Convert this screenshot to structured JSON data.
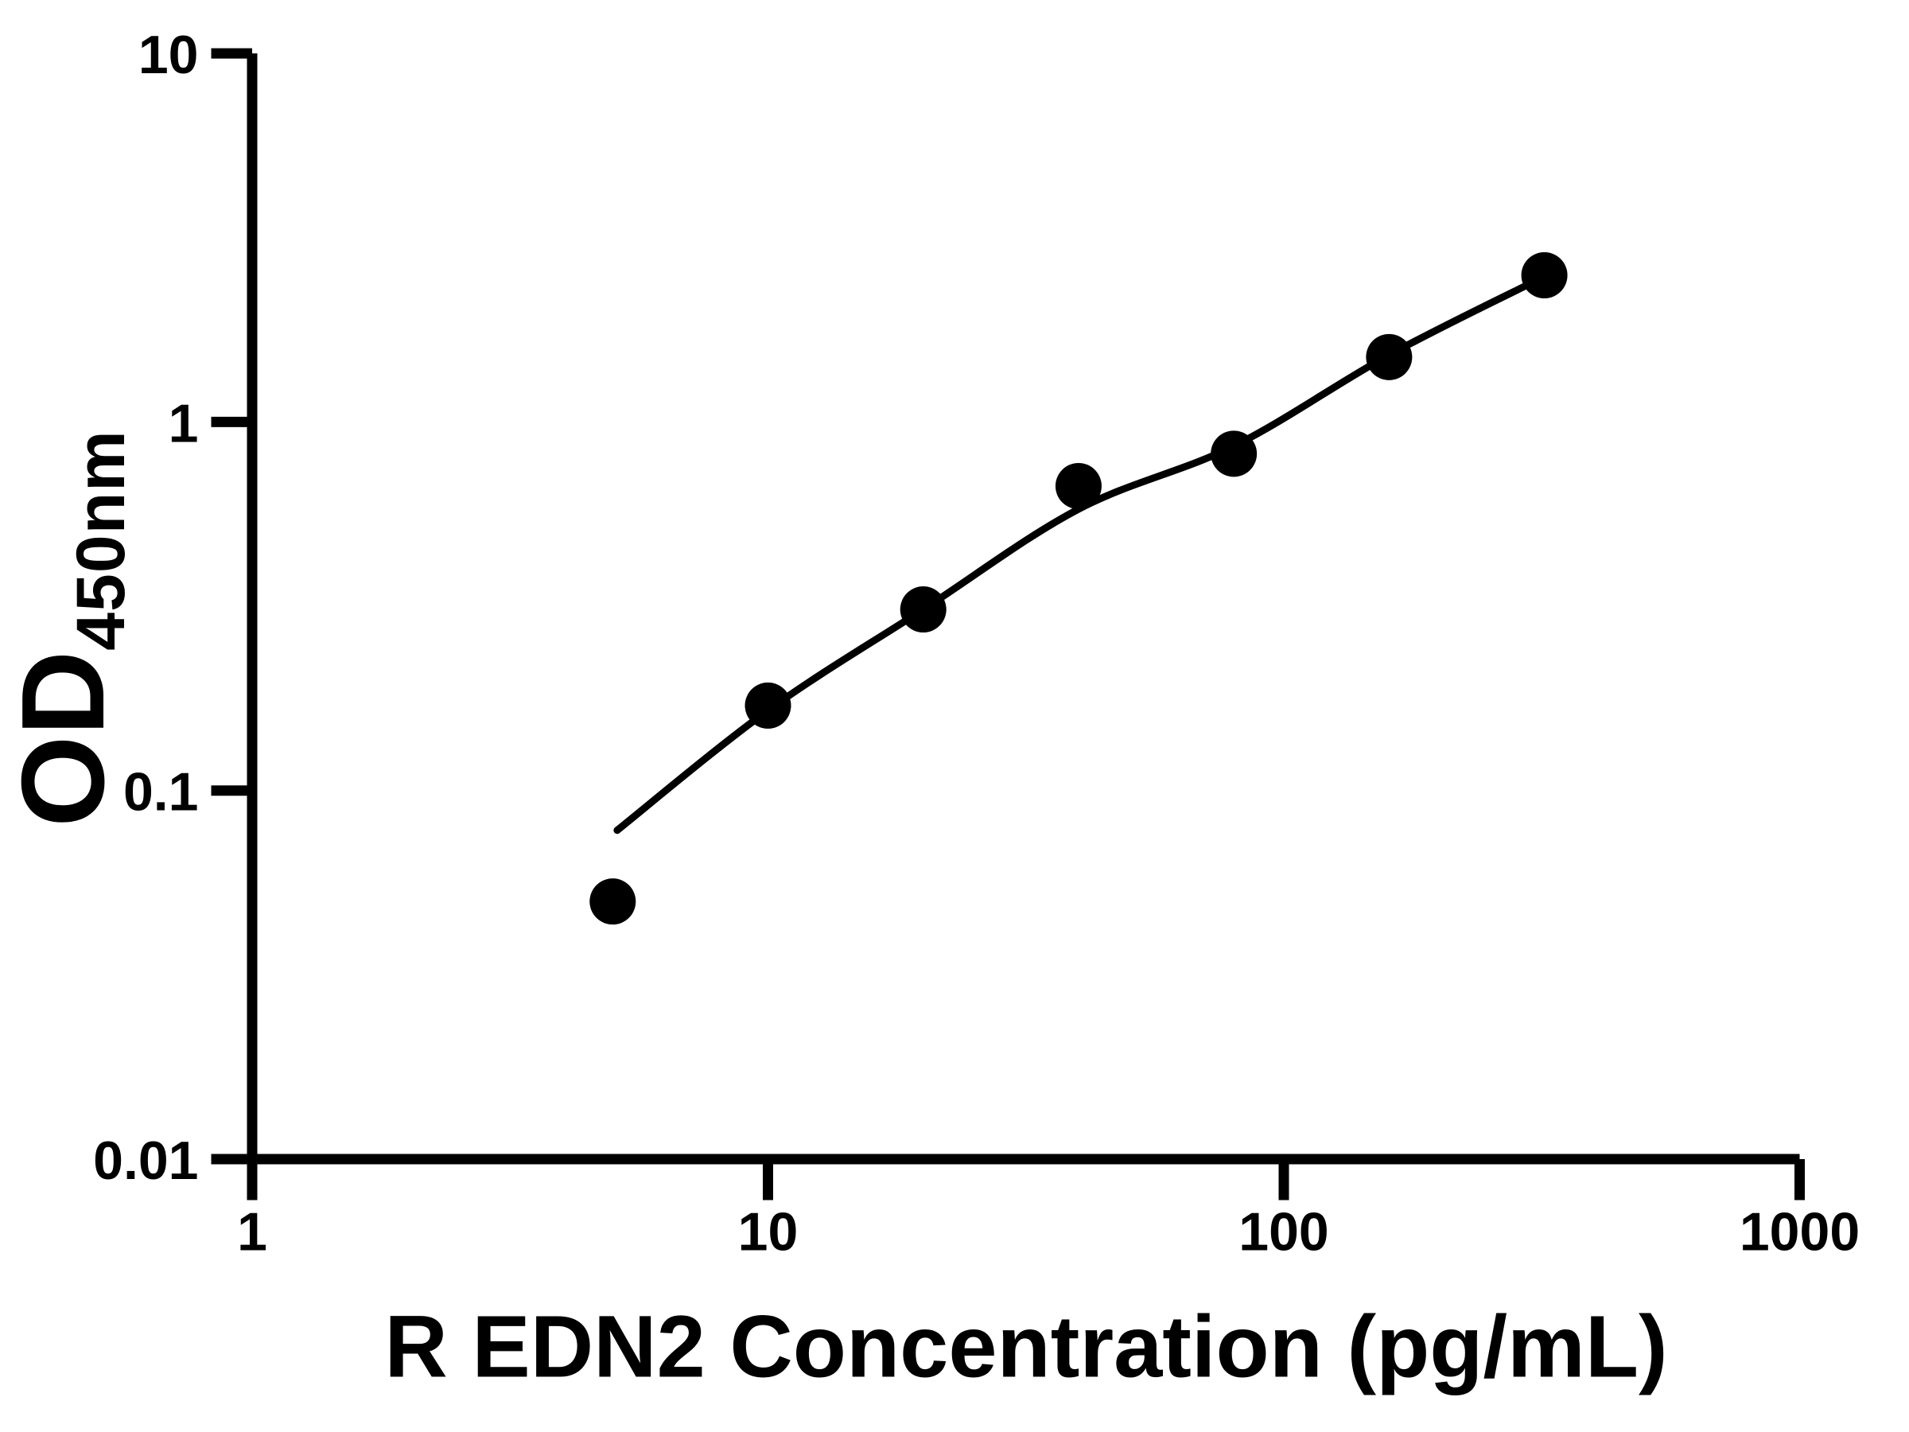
{
  "chart_data": {
    "type": "scatter",
    "title": "",
    "xlabel": "R EDN2 Concentration (pg/mL)",
    "ylabel_main": "OD",
    "ylabel_sub": "450nm",
    "x_scale": "log",
    "y_scale": "log",
    "xlim": [
      1,
      1000
    ],
    "ylim": [
      0.01,
      10
    ],
    "grid": false,
    "legend_position": "none",
    "axis_color": "#000000",
    "marker_color": "#000000",
    "curve_color": "#000000",
    "background_color": "#ffffff",
    "x_ticks": {
      "values": [
        1,
        10,
        100,
        1000
      ],
      "labels": [
        "1",
        "10",
        "100",
        "1000"
      ]
    },
    "y_ticks": {
      "values": [
        10,
        1,
        0.1,
        0.01
      ],
      "labels": [
        "10",
        "1",
        "0.1",
        "0.01"
      ]
    },
    "series": [
      {
        "name": "standard-curve-points",
        "marker": "filled-circle",
        "points": [
          {
            "x": 5,
            "y": 0.05
          },
          {
            "x": 10,
            "y": 0.17
          },
          {
            "x": 20,
            "y": 0.31
          },
          {
            "x": 40,
            "y": 0.67
          },
          {
            "x": 80,
            "y": 0.82
          },
          {
            "x": 160,
            "y": 1.5
          },
          {
            "x": 320,
            "y": 2.5
          }
        ]
      }
    ],
    "fit_curve": {
      "name": "standard-curve-fit",
      "samples": [
        {
          "x": 5.1,
          "y": 0.078
        },
        {
          "x": 10,
          "y": 0.165
        },
        {
          "x": 20,
          "y": 0.31
        },
        {
          "x": 40,
          "y": 0.58
        },
        {
          "x": 80,
          "y": 0.86
        },
        {
          "x": 160,
          "y": 1.52
        },
        {
          "x": 320,
          "y": 2.48
        }
      ]
    }
  }
}
